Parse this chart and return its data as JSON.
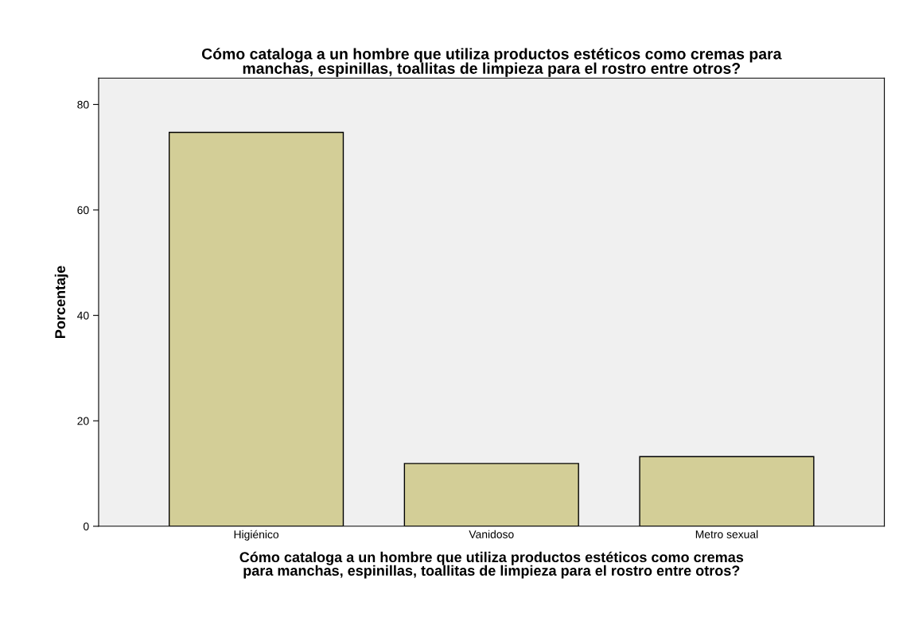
{
  "chart_data": {
    "type": "bar",
    "title": "Cómo cataloga a un hombre que utiliza productos estéticos como cremas para\nmanchas, espinillas, toallitas de limpieza para el rostro entre otros?",
    "xlabel": "Cómo cataloga a un hombre que utiliza productos estéticos como cremas\npara manchas, espinillas, toallitas de limpieza para el rostro entre otros?",
    "ylabel": "Porcentaje",
    "categories": [
      "Higiénico",
      "Vanidoso",
      "Metro sexual"
    ],
    "values": [
      74.7,
      11.9,
      13.2
    ],
    "color": "#d3ce97",
    "ylim": [
      0,
      85
    ],
    "yticks": [
      0,
      20,
      40,
      60,
      80
    ],
    "grid": false,
    "legend": false
  }
}
